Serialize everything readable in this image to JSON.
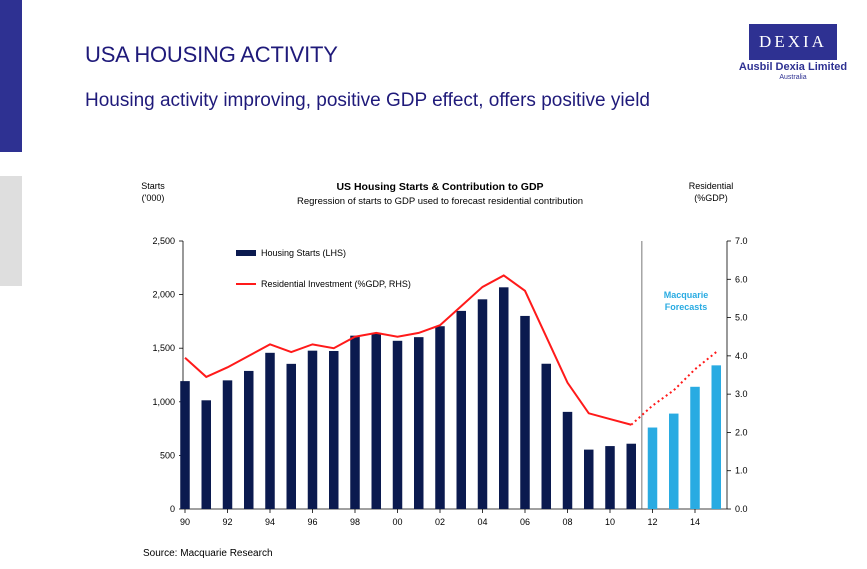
{
  "slide": {
    "title": "USA HOUSING ACTIVITY",
    "subtitle": "Housing activity improving, positive GDP effect, offers positive yield",
    "source": "Source: Macquarie Research"
  },
  "logo": {
    "mark": "DEXIA",
    "name": "Ausbil Dexia Limited",
    "region": "Australia"
  },
  "colors": {
    "brand": "#2e3192",
    "bars_actual": "#0b1a4f",
    "bars_forecast": "#29abe2",
    "line": "#ff1a1a"
  },
  "chart_data": {
    "type": "bar",
    "title": "US Housing Starts & Contribution to GDP",
    "subtitle": "Regression of starts to GDP used to forecast residential contribution",
    "ylabel_left": [
      "Starts",
      "('000)"
    ],
    "ylabel_right": [
      "Residential",
      "(%GDP)"
    ],
    "ylim_left": [
      0,
      2500
    ],
    "ylim_right": [
      0,
      7
    ],
    "yticks_left": [
      "0",
      "500",
      "1,000",
      "1,500",
      "2,000",
      "2,500"
    ],
    "yticks_right": [
      "0.0",
      "1.0",
      "2.0",
      "3.0",
      "4.0",
      "5.0",
      "6.0",
      "7.0"
    ],
    "xticks": [
      "90",
      "92",
      "94",
      "96",
      "98",
      "00",
      "02",
      "04",
      "06",
      "08",
      "10",
      "12",
      "14"
    ],
    "years": [
      1990,
      1991,
      1992,
      1993,
      1994,
      1995,
      1996,
      1997,
      1998,
      1999,
      2000,
      2001,
      2002,
      2003,
      2004,
      2005,
      2006,
      2007,
      2008,
      2009,
      2010,
      2011,
      2012,
      2013,
      2014,
      2015
    ],
    "forecast_annotation": [
      "Macquarie",
      "Forecasts"
    ],
    "series": [
      {
        "name": "Housing Starts (LHS)",
        "type": "bar",
        "axis": "left",
        "values": [
          1193,
          1014,
          1200,
          1288,
          1457,
          1354,
          1477,
          1474,
          1617,
          1641,
          1569,
          1603,
          1705,
          1848,
          1956,
          2068,
          1801,
          1355,
          906,
          554,
          587,
          609,
          760,
          890,
          1140,
          1340
        ],
        "forecast_from": 2012
      },
      {
        "name": "Residential Investment (%GDP, RHS)",
        "type": "line",
        "axis": "right",
        "values": [
          3.95,
          3.45,
          3.7,
          4.0,
          4.3,
          4.1,
          4.3,
          4.2,
          4.5,
          4.6,
          4.5,
          4.6,
          4.8,
          5.3,
          5.8,
          6.1,
          5.7,
          4.5,
          3.3,
          2.5,
          2.35,
          2.2,
          2.7,
          3.1,
          3.65,
          4.1
        ],
        "forecast_from": 2011
      }
    ],
    "legend_position": "top-left"
  }
}
